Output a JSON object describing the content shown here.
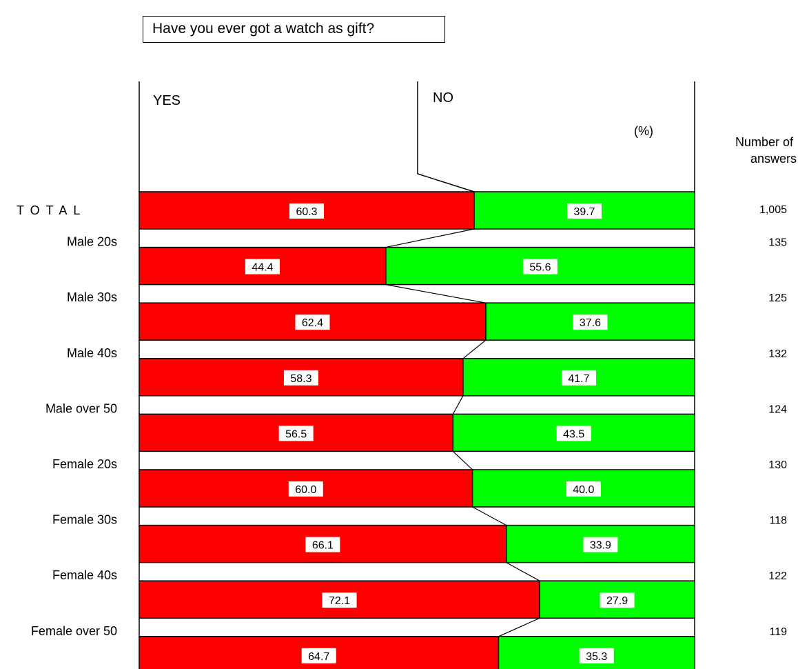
{
  "chart_data": {
    "type": "bar",
    "stacked": true,
    "orientation": "horizontal",
    "title": "Have you ever got a watch as gift?",
    "unit": "(%)",
    "count_header": "Number of answers",
    "categories": [
      "TOTAL",
      "Male 20s",
      "Male 30s",
      "Male 40s",
      "Male over 50",
      "Female 20s",
      "Female 30s",
      "Female 40s",
      "Female over 50"
    ],
    "series": [
      {
        "name": "YES",
        "color": "#ff0000",
        "values": [
          60.3,
          44.4,
          62.4,
          58.3,
          56.5,
          60.0,
          66.1,
          72.1,
          64.7
        ]
      },
      {
        "name": "NO",
        "color": "#00ff00",
        "values": [
          39.7,
          55.6,
          37.6,
          41.7,
          43.5,
          40.0,
          33.9,
          27.9,
          35.3
        ]
      }
    ],
    "counts": [
      "1,005",
      "135",
      "125",
      "132",
      "124",
      "130",
      "118",
      "122",
      "119"
    ],
    "xlim": [
      0,
      100
    ],
    "grid": false
  }
}
